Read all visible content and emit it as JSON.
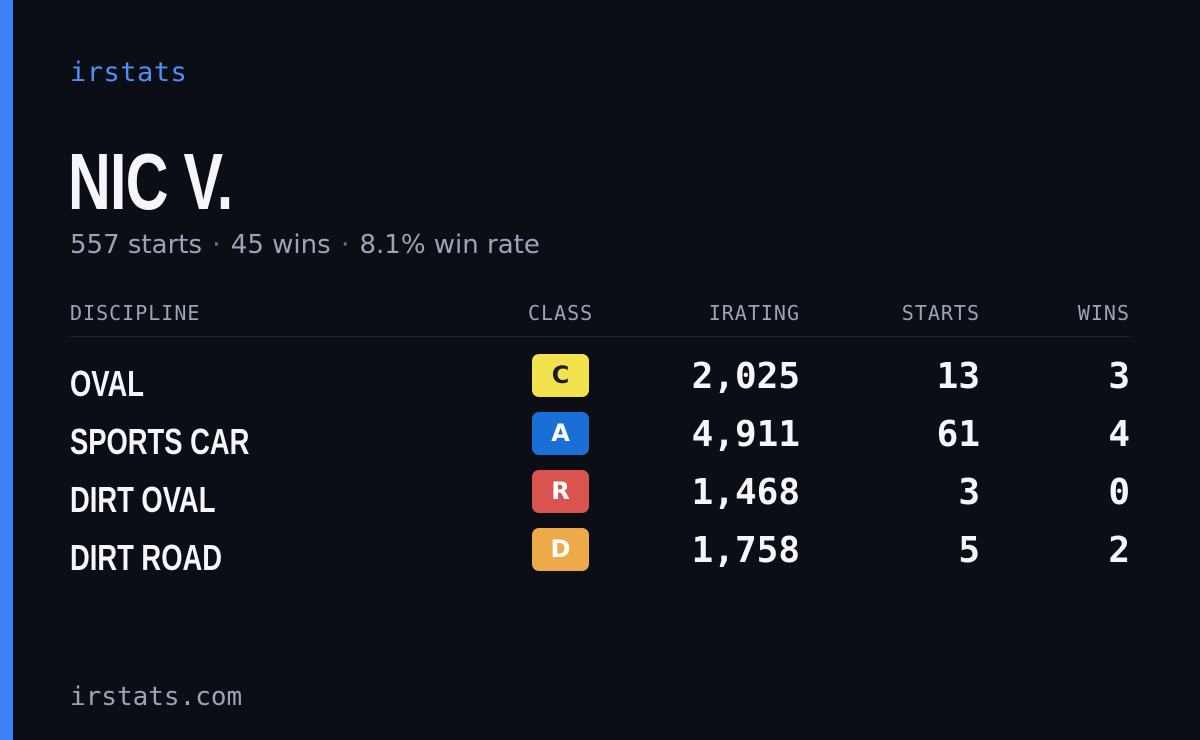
{
  "colors": {
    "accent": "#3b82f6",
    "brand_text": "#4f8ff7",
    "background": "#0b0e14"
  },
  "header": {
    "brand": "irstats"
  },
  "profile": {
    "name": "NIC V.",
    "starts_text": "557 starts",
    "separator": "·",
    "wins_text": "45 wins",
    "win_rate_text": "8.1% win rate"
  },
  "table": {
    "columns": {
      "discipline": "DISCIPLINE",
      "class": "CLASS",
      "irating": "IRATING",
      "starts": "STARTS",
      "wins": "WINS"
    },
    "rows": [
      {
        "discipline": "OVAL",
        "class": "C",
        "class_bg": "#f2e24e",
        "class_fg": "#1b1d24",
        "irating": "2,025",
        "starts": "13",
        "wins": "3"
      },
      {
        "discipline": "SPORTS CAR",
        "class": "A",
        "class_bg": "#1a6fd6",
        "class_fg": "#ffffff",
        "irating": "4,911",
        "starts": "61",
        "wins": "4"
      },
      {
        "discipline": "DIRT OVAL",
        "class": "R",
        "class_bg": "#d9534f",
        "class_fg": "#ffffff",
        "irating": "1,468",
        "starts": "3",
        "wins": "0"
      },
      {
        "discipline": "DIRT ROAD",
        "class": "D",
        "class_bg": "#ecab48",
        "class_fg": "#ffffff",
        "irating": "1,758",
        "starts": "5",
        "wins": "2"
      }
    ]
  },
  "footer": {
    "url": "irstats.com"
  }
}
